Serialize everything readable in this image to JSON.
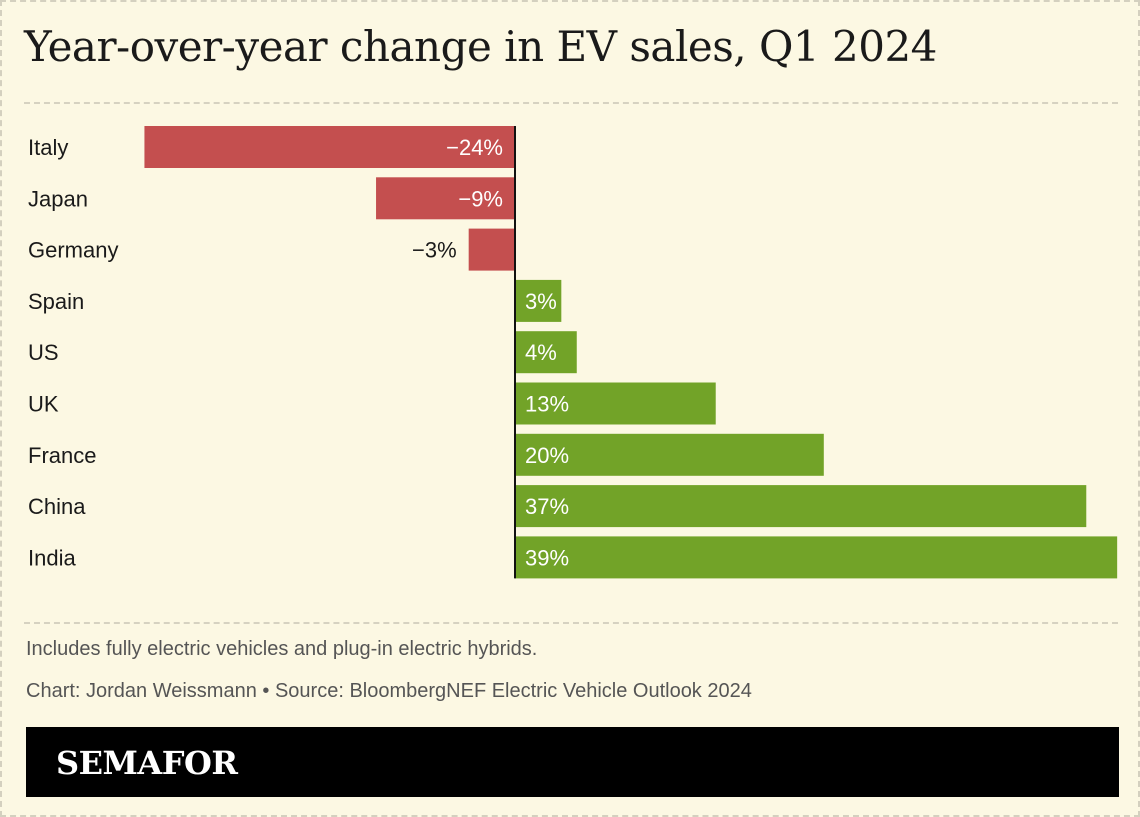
{
  "title": "Year-over-year change in EV sales, Q1 2024",
  "note": "Includes fully electric vehicles and plug-in electric hybrids.",
  "credit": "Chart: Jordan Weissmann • Source: BloombergNEF Electric Vehicle Outlook 2024",
  "brand": "SEMAFOR",
  "colors": {
    "negative": "#c44f4f",
    "positive": "#72a328",
    "background": "#fcf8e3",
    "axis": "#111111"
  },
  "chart_data": {
    "type": "bar",
    "orientation": "horizontal",
    "categories": [
      "Italy",
      "Japan",
      "Germany",
      "Spain",
      "US",
      "UK",
      "France",
      "China",
      "India"
    ],
    "values": [
      -24,
      -9,
      -3,
      3,
      4,
      13,
      20,
      37,
      39
    ],
    "labels": [
      "−24%",
      "−9%",
      "−3%",
      "3%",
      "4%",
      "13%",
      "20%",
      "37%",
      "39%"
    ],
    "unit": "%",
    "xlim": [
      -24,
      39
    ],
    "grid": false,
    "legend": "none"
  }
}
